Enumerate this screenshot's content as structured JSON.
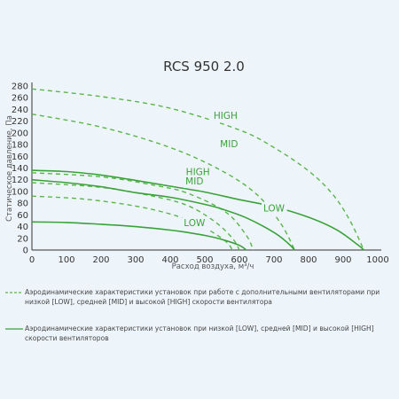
{
  "chart_data": {
    "type": "line",
    "title": "RCS 950 2.0",
    "xlabel": "Расход воздуха, м³/ч",
    "ylabel": "Статическое давление, Па",
    "xlim": [
      0,
      1000
    ],
    "ylim": [
      0,
      280
    ],
    "xticks": [
      "0",
      "100",
      "200",
      "300",
      "400",
      "500",
      "600",
      "700",
      "800",
      "900",
      "1000"
    ],
    "yticks": [
      "0",
      "20",
      "40",
      "60",
      "80",
      "100",
      "120",
      "140",
      "160",
      "180",
      "200",
      "220",
      "240",
      "260",
      "280"
    ],
    "grid": false,
    "series": [
      {
        "name": "HIGH",
        "group": "additional",
        "style": "dashed",
        "x": [
          0,
          200,
          400,
          600,
          700,
          800,
          870,
          920,
          960
        ],
        "y": [
          275,
          262,
          242,
          205,
          175,
          135,
          95,
          50,
          0
        ]
      },
      {
        "name": "MID",
        "group": "additional",
        "style": "dashed",
        "x": [
          0,
          200,
          400,
          550,
          650,
          720,
          760
        ],
        "y": [
          232,
          210,
          175,
          135,
          95,
          45,
          0
        ]
      },
      {
        "name": "HIGH",
        "group": "additional",
        "style": "dashed",
        "x": [
          0,
          200,
          350,
          450,
          560,
          620,
          640
        ],
        "y": [
          132,
          125,
          111,
          97,
          65,
          25,
          0
        ]
      },
      {
        "name": "MID",
        "group": "additional",
        "style": "dashed",
        "x": [
          0,
          200,
          350,
          450,
          530,
          580,
          600
        ],
        "y": [
          115,
          107,
          92,
          76,
          48,
          20,
          0
        ]
      },
      {
        "name": "LOW",
        "group": "additional",
        "style": "dashed",
        "x": [
          0,
          150,
          300,
          420,
          500,
          560,
          580
        ],
        "y": [
          92,
          87,
          75,
          58,
          38,
          15,
          0
        ]
      },
      {
        "name": "HIGH",
        "group": "standard",
        "style": "solid",
        "x": [
          0,
          100,
          200,
          300,
          400,
          500,
          600,
          700,
          800,
          880,
          940,
          960
        ],
        "y": [
          136,
          134,
          128,
          119,
          109,
          99,
          86,
          74,
          56,
          35,
          10,
          0
        ]
      },
      {
        "name": "MID",
        "group": "standard",
        "style": "solid",
        "x": [
          0,
          100,
          200,
          300,
          400,
          500,
          550,
          620,
          700,
          740,
          760
        ],
        "y": [
          120,
          115,
          108,
          98,
          90,
          78,
          70,
          55,
          30,
          12,
          0
        ]
      },
      {
        "name": "LOW",
        "group": "standard",
        "style": "solid",
        "x": [
          0,
          100,
          200,
          300,
          400,
          450,
          500,
          550,
          600,
          620
        ],
        "y": [
          48,
          47,
          44,
          40,
          34,
          30,
          25,
          18,
          8,
          0
        ]
      }
    ],
    "labels": [
      {
        "text": "HIGH",
        "x": 560,
        "y": 230
      },
      {
        "text": "MID",
        "x": 570,
        "y": 182
      },
      {
        "text": "HIGH",
        "x": 480,
        "y": 134
      },
      {
        "text": "MID",
        "x": 470,
        "y": 118
      },
      {
        "text": "LOW",
        "x": 700,
        "y": 72
      },
      {
        "text": "LOW",
        "x": 470,
        "y": 47
      }
    ]
  },
  "legend": {
    "items": [
      {
        "style": "dashed",
        "color": "#5ab54b",
        "text": "Аэродинамические характеристики установок при работе с дополнительными вентиляторами при низкой [LOW], средней [MID] и высокой [HIGH] скорости вентилятора"
      },
      {
        "style": "solid",
        "color": "#3aa23a",
        "text": "Аэродинамические характеристики установок при низкой [LOW], средней [MID] и высокой [HIGH] скорости вентиляторов"
      }
    ]
  },
  "colors": {
    "solid_line": "#3aa23a",
    "dashed_line": "#5ab54b",
    "axis": "#333333",
    "label_text": "#3aa23a",
    "background": "#eef5fa"
  }
}
